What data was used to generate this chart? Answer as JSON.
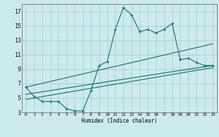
{
  "xlabel": "Humidex (Indice chaleur)",
  "bg_color": "#cdeaea",
  "grid_color": "#a8cccc",
  "line_color": "#1a7070",
  "xlim": [
    -0.5,
    23.5
  ],
  "ylim": [
    3,
    18
  ],
  "yticks": [
    3,
    5,
    7,
    9,
    11,
    13,
    15,
    17
  ],
  "xticks": [
    0,
    1,
    2,
    3,
    4,
    5,
    6,
    7,
    8,
    9,
    10,
    11,
    12,
    13,
    14,
    15,
    16,
    17,
    18,
    19,
    20,
    21,
    22,
    23
  ],
  "xtick_labels": [
    "0",
    "1",
    "2",
    "3",
    "4",
    "5",
    "6",
    "7",
    "8",
    "9",
    "10",
    "11",
    "12",
    "13",
    "14",
    "15",
    "16",
    "17",
    "18",
    "19",
    "20",
    "21",
    "22",
    "23"
  ],
  "main_curve_x": [
    0,
    1,
    2,
    3,
    4,
    5,
    6,
    7,
    8,
    9,
    10,
    11,
    12,
    13,
    14,
    15,
    16,
    17,
    18,
    19,
    20,
    21,
    22,
    23
  ],
  "main_curve_y": [
    6.5,
    5.2,
    4.5,
    4.5,
    4.5,
    3.5,
    3.2,
    3.2,
    6.0,
    9.5,
    10.0,
    14.5,
    17.5,
    16.5,
    14.2,
    14.5,
    14.0,
    14.5,
    15.3,
    10.3,
    10.5,
    9.9,
    9.5,
    9.5
  ],
  "trend_line1": {
    "x": [
      0,
      23
    ],
    "y": [
      6.5,
      12.5
    ]
  },
  "trend_line2": {
    "x": [
      0,
      23
    ],
    "y": [
      5.5,
      9.5
    ]
  },
  "trend_line3": {
    "x": [
      0,
      23
    ],
    "y": [
      4.8,
      9.2
    ]
  }
}
